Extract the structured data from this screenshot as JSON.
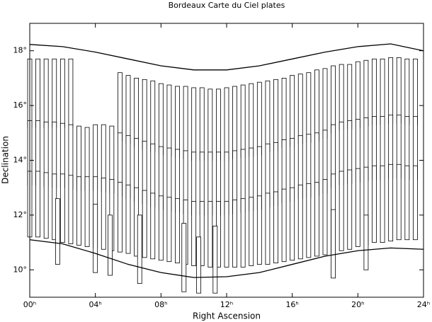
{
  "chart_data": {
    "type": "plates",
    "title": "Bordeaux Carte du Ciel plates",
    "x_label": "Right Ascension",
    "y_label": "Declination",
    "xlim": [
      0,
      24
    ],
    "ylim": [
      9,
      19
    ],
    "xticks": [
      {
        "value": 0,
        "label": "00ʰ"
      },
      {
        "value": 4,
        "label": "04ʰ"
      },
      {
        "value": 8,
        "label": "08ʰ"
      },
      {
        "value": 12,
        "label": "12ʰ"
      },
      {
        "value": 16,
        "label": "16ʰ"
      },
      {
        "value": 20,
        "label": "20ʰ"
      },
      {
        "value": 24,
        "label": "24ʰ"
      }
    ],
    "yticks": [
      {
        "value": 10,
        "label": "10°"
      },
      {
        "value": 12,
        "label": "12°"
      },
      {
        "value": 14,
        "label": "14°"
      },
      {
        "value": 16,
        "label": "16°"
      },
      {
        "value": 18,
        "label": "18°"
      }
    ],
    "curves": [
      {
        "x": [
          0,
          2,
          4,
          6,
          8,
          10,
          12,
          14,
          16,
          18,
          20,
          22,
          24
        ],
        "y": [
          18.23,
          18.15,
          17.95,
          17.7,
          17.45,
          17.3,
          17.3,
          17.45,
          17.7,
          17.95,
          18.15,
          18.25,
          18.0
        ]
      },
      {
        "x": [
          0,
          2,
          4,
          6,
          8,
          10,
          12,
          14,
          16,
          18,
          20,
          22,
          24
        ],
        "y": [
          11.1,
          10.95,
          10.6,
          10.2,
          9.9,
          9.72,
          9.75,
          9.9,
          10.2,
          10.5,
          10.7,
          10.8,
          10.75
        ]
      }
    ],
    "plates": [
      {
        "ra": [
          0,
          0.5,
          1,
          1.5,
          2,
          2.5,
          5.5,
          6,
          6.5,
          7,
          7.5,
          8,
          8.5,
          9,
          9.5,
          10,
          10.5,
          11,
          11.5,
          12,
          12.5,
          13,
          13.5,
          14,
          14.5,
          15,
          15.5,
          16,
          16.5,
          17,
          17.5,
          18,
          18.5,
          19,
          19.5,
          20,
          20.5,
          21,
          21.5,
          22,
          22.5,
          23,
          23.5
        ],
        "dec_low": [
          15.2,
          15.2,
          15.2,
          15.2,
          15.2,
          15.2,
          14.7,
          14.6,
          14.5,
          14.4,
          14.3,
          14.2,
          14.15,
          14.1,
          14.05,
          14.0,
          14.0,
          14.0,
          14.0,
          14.0,
          14.05,
          14.1,
          14.15,
          14.2,
          14.3,
          14.35,
          14.45,
          14.5,
          14.6,
          14.65,
          14.7,
          14.8,
          15.0,
          15.1,
          15.15,
          15.2,
          15.25,
          15.3,
          15.3,
          15.35,
          15.35,
          15.3,
          15.3
        ],
        "dec_high": [
          17.7,
          17.7,
          17.7,
          17.7,
          17.7,
          17.7,
          17.2,
          17.1,
          17.0,
          16.95,
          16.9,
          16.8,
          16.75,
          16.7,
          16.7,
          16.65,
          16.65,
          16.6,
          16.6,
          16.65,
          16.7,
          16.75,
          16.8,
          16.85,
          16.9,
          16.95,
          17.0,
          17.1,
          17.15,
          17.2,
          17.3,
          17.35,
          17.45,
          17.5,
          17.5,
          17.6,
          17.65,
          17.7,
          17.7,
          17.75,
          17.75,
          17.7,
          17.7
        ]
      },
      {
        "ra": [
          0,
          0.5,
          1,
          1.5,
          2,
          2.5,
          3,
          3.5,
          4,
          4.5,
          5,
          5.5,
          6,
          6.5,
          7,
          7.5,
          8,
          8.5,
          9,
          9.5,
          10,
          10.5,
          11,
          11.5,
          12,
          12.5,
          13,
          13.5,
          14,
          14.5,
          15,
          15.5,
          16,
          16.5,
          17,
          17.5,
          18,
          18.5,
          19,
          19.5,
          20,
          20.5,
          21,
          21.5,
          22,
          22.5,
          23,
          23.5
        ],
        "dec_low": [
          13.1,
          13.1,
          13.05,
          13.0,
          13.0,
          12.95,
          12.9,
          12.9,
          12.9,
          12.85,
          12.8,
          12.7,
          12.6,
          12.5,
          12.4,
          12.3,
          12.2,
          12.15,
          12.1,
          12.05,
          12.0,
          12.0,
          12.0,
          12.0,
          12.0,
          12.05,
          12.1,
          12.15,
          12.2,
          12.3,
          12.35,
          12.45,
          12.5,
          12.6,
          12.65,
          12.7,
          12.8,
          13.0,
          13.1,
          13.15,
          13.2,
          13.25,
          13.3,
          13.3,
          13.35,
          13.35,
          13.3,
          13.3
        ],
        "dec_high": [
          15.45,
          15.45,
          15.4,
          15.4,
          15.35,
          15.3,
          15.25,
          15.2,
          15.3,
          15.3,
          15.25,
          15.0,
          14.9,
          14.8,
          14.7,
          14.6,
          14.5,
          14.45,
          14.4,
          14.35,
          14.3,
          14.3,
          14.3,
          14.3,
          14.3,
          14.35,
          14.4,
          14.45,
          14.5,
          14.6,
          14.65,
          14.75,
          14.8,
          14.9,
          14.95,
          15.0,
          15.1,
          15.3,
          15.4,
          15.45,
          15.5,
          15.55,
          15.6,
          15.6,
          15.65,
          15.65,
          15.6,
          15.6
        ]
      },
      {
        "ra": [
          0,
          0.5,
          1,
          1.5,
          2,
          2.5,
          3,
          3.5,
          4,
          4.5,
          5,
          5.5,
          6,
          6.5,
          7,
          7.5,
          8,
          8.5,
          9,
          9.5,
          10,
          10.5,
          11,
          11.5,
          12,
          12.5,
          13,
          13.5,
          14,
          14.5,
          15,
          15.5,
          16,
          16.5,
          17,
          17.5,
          18,
          18.5,
          19,
          19.5,
          20,
          20.5,
          21,
          21.5,
          22,
          22.5,
          23,
          23.5
        ],
        "dec_low": [
          11.2,
          11.2,
          11.15,
          11.1,
          11.0,
          10.95,
          10.9,
          10.85,
          10.8,
          10.75,
          10.7,
          10.65,
          10.6,
          10.5,
          10.45,
          10.4,
          10.35,
          10.3,
          10.25,
          10.2,
          10.15,
          10.15,
          10.1,
          10.1,
          10.1,
          10.1,
          10.1,
          10.15,
          10.2,
          10.2,
          10.25,
          10.3,
          10.35,
          10.4,
          10.45,
          10.5,
          10.55,
          10.6,
          10.7,
          10.75,
          10.85,
          10.9,
          11.0,
          11.0,
          11.05,
          11.1,
          11.1,
          11.1
        ],
        "dec_high": [
          13.6,
          13.6,
          13.55,
          13.5,
          13.5,
          13.45,
          13.4,
          13.4,
          13.4,
          13.35,
          13.3,
          13.2,
          13.1,
          13.0,
          12.9,
          12.8,
          12.7,
          12.65,
          12.6,
          12.55,
          12.5,
          12.5,
          12.5,
          12.5,
          12.5,
          12.55,
          12.6,
          12.65,
          12.7,
          12.8,
          12.85,
          12.95,
          13.0,
          13.1,
          13.15,
          13.2,
          13.3,
          13.5,
          13.6,
          13.65,
          13.7,
          13.75,
          13.8,
          13.8,
          13.85,
          13.85,
          13.8,
          13.8
        ]
      },
      {
        "ra": [
          1.7,
          4.0,
          4.9,
          6.7,
          9.4,
          10.3,
          11.3,
          18.5,
          20.5
        ],
        "dec_low": [
          10.2,
          9.9,
          9.8,
          9.5,
          9.2,
          9.15,
          9.15,
          9.7,
          10.0
        ],
        "dec_high": [
          12.6,
          12.4,
          12.0,
          12.0,
          11.7,
          11.2,
          11.6,
          12.2,
          12.0
        ]
      }
    ]
  }
}
